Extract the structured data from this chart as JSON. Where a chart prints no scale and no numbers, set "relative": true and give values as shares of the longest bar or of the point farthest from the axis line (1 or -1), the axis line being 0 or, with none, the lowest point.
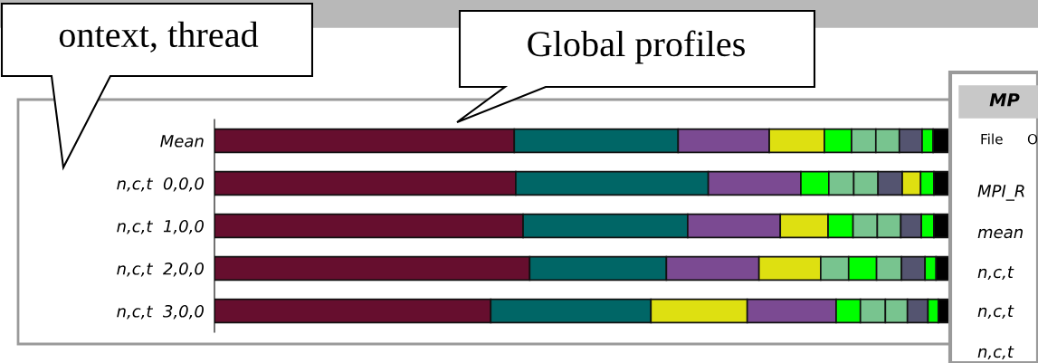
{
  "chart_data": {
    "type": "bar",
    "orientation": "horizontal",
    "stacked": true,
    "relative": true,
    "legend": false,
    "grid": false,
    "categories": [
      "Mean",
      "n,c,t  0,0,0",
      "n,c,t  1,0,0",
      "n,c,t  2,0,0",
      "n,c,t  3,0,0"
    ],
    "series": [
      {
        "colors": [
          "#660e2e",
          "#660e2e",
          "#660e2e",
          "#660e2e",
          "#660e2e"
        ],
        "values": [
          0.408,
          0.41,
          0.42,
          0.429,
          0.376
        ]
      },
      {
        "colors": [
          "#006666",
          "#006666",
          "#006666",
          "#006666",
          "#006666"
        ],
        "values": [
          0.223,
          0.262,
          0.224,
          0.186,
          0.218
        ]
      },
      {
        "colors": [
          "#7b4a92",
          "#7b4a92",
          "#7b4a92",
          "#7b4a92",
          "#dee011"
        ],
        "values": [
          0.124,
          0.126,
          0.126,
          0.126,
          0.131
        ]
      },
      {
        "colors": [
          "#dee011",
          "#00ff00",
          "#dee011",
          "#dee011",
          "#7b4a92"
        ],
        "values": [
          0.075,
          0.038,
          0.065,
          0.084,
          0.121
        ]
      },
      {
        "colors": [
          "#00ff00",
          "#78c48f",
          "#00ff00",
          "#78c48f",
          "#00ff00"
        ],
        "values": [
          0.037,
          0.034,
          0.034,
          0.038,
          0.033
        ]
      },
      {
        "colors": [
          "#78c48f",
          "#78c48f",
          "#78c48f",
          "#00ff00",
          "#78c48f"
        ],
        "values": [
          0.033,
          0.033,
          0.033,
          0.038,
          0.034
        ]
      },
      {
        "colors": [
          "#78c48f",
          "#545470",
          "#78c48f",
          "#78c48f",
          "#78c48f"
        ],
        "values": [
          0.032,
          0.033,
          0.032,
          0.034,
          0.03
        ]
      },
      {
        "colors": [
          "#545470",
          "#dee011",
          "#545470",
          "#545470",
          "#545470"
        ],
        "values": [
          0.031,
          0.025,
          0.028,
          0.032,
          0.028
        ]
      },
      {
        "colors": [
          "#00ff00",
          "#00ff00",
          "#00ff00",
          "#00ff00",
          "#00ff00"
        ],
        "values": [
          0.015,
          0.018,
          0.017,
          0.015,
          0.014
        ]
      },
      {
        "colors": [
          "#000000",
          "#000000",
          "#000000",
          "#000000",
          "#000000"
        ],
        "values": [
          0.022,
          0.02,
          0.02,
          0.018,
          0.015
        ]
      }
    ],
    "annotations": [
      "ontext, thread",
      "Global profiles",
      "MP",
      "File",
      "O",
      "MPI_R",
      "mean",
      "n,c,t",
      "n,c,t",
      "n,c,t"
    ]
  }
}
